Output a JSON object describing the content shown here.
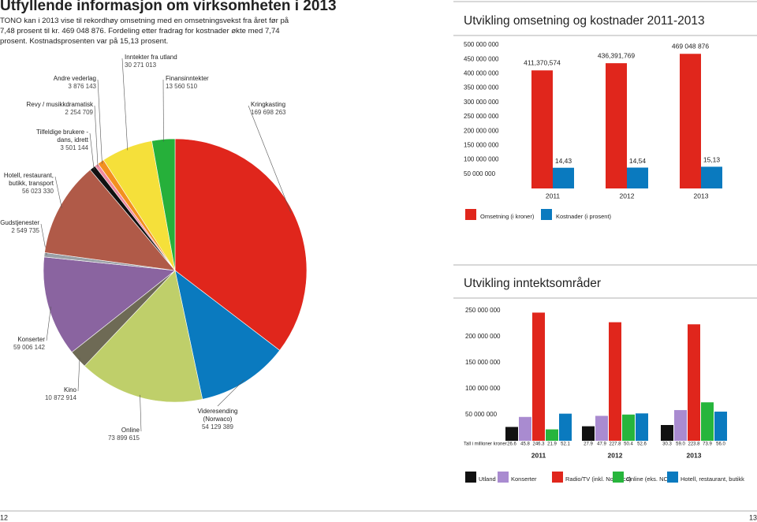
{
  "header": {
    "title": "Utfyllende informasjon om virksomheten i 2013",
    "text": "TONO kan i 2013 vise til rekordhøy omsetning med en omsetningsvekst fra året før på 7,48 prosent til kr. 469 048 876. Fordeling etter fradrag for kostnader økte med 7,74 prosent. Kostnadsprosenten var på 15,13 prosent."
  },
  "page_numbers": [
    "12",
    "13"
  ],
  "chart_data": [
    {
      "type": "pie",
      "categories": [
        "Kringkasting",
        "Videresending (Norwaco)",
        "Online",
        "Kino",
        "Konserter",
        "Gudstjenester",
        "Hotell, restaurant, butikk, transport",
        "Tilfeldige brukere - dans, idrett",
        "Revy / musikkdramatisk",
        "Andre vederlag",
        "Inntekter fra utland",
        "Finansinntekter"
      ],
      "values": [
        169698263,
        54129389,
        73899615,
        10872914,
        59006142,
        2549735,
        56023330,
        3501144,
        2254709,
        3876143,
        30271013,
        13560510
      ],
      "value_labels": [
        "169 698 263",
        "54 129 389",
        "73 899 615",
        "10 872 914",
        "59 006 142",
        "2 549 735",
        "56 023 330",
        "3 501 144",
        "2 254 709",
        "3 876 143",
        "30 271 013",
        "13 560 510"
      ],
      "colors": [
        "#e0261c",
        "#0a7abf",
        "#bfcf6a",
        "#6e6a55",
        "#8a64a0",
        "#9aa0a6",
        "#b05a48",
        "#111111",
        "#f08aa0",
        "#f39020",
        "#f5e03a",
        "#26b03a"
      ]
    },
    {
      "type": "bar",
      "title": "Utvikling omsetning og kostnader 2011-2013",
      "categories": [
        "2011",
        "2012",
        "2013"
      ],
      "series": [
        {
          "name": "Omsetning (i kroner)",
          "color": "#e0261c",
          "values": [
            411370574,
            436391769,
            469048876
          ],
          "value_labels": [
            "411,370,574",
            "436,391,769",
            "469 048 876"
          ]
        },
        {
          "name": "Kostnader (i prosent)",
          "color": "#0a7abf",
          "axis": "y2",
          "values": [
            14.43,
            14.54,
            15.13
          ],
          "value_labels": [
            "14,43",
            "14,54",
            "15,13"
          ]
        }
      ],
      "ylim": [
        0,
        500000000
      ],
      "yticks": [
        {
          "value": 50000000,
          "label": "50 000 000"
        },
        {
          "value": 100000000,
          "label": "100 000 000"
        },
        {
          "value": 150000000,
          "label": "150 000 000"
        },
        {
          "value": 200000000,
          "label": "200 000 000"
        },
        {
          "value": 250000000,
          "label": "250 000 000"
        },
        {
          "value": 300000000,
          "label": "300 000 000"
        },
        {
          "value": 350000000,
          "label": "350 000 000"
        },
        {
          "value": 400000000,
          "label": "400 000 000"
        },
        {
          "value": 450000000,
          "label": "450 000 000"
        },
        {
          "value": 500000000,
          "label": "500 000 000"
        }
      ],
      "y2lim": [
        0,
        100
      ]
    },
    {
      "type": "bar",
      "title": "Utvikling inntektsområder",
      "table_label": "Tall i millioner kroner",
      "categories": [
        "2011",
        "2012",
        "2013"
      ],
      "series": [
        {
          "name": "Utland",
          "color": "#111111",
          "values": [
            26600000,
            27900000,
            30300000
          ],
          "value_labels": [
            "26.6",
            "27.9",
            "30.3"
          ]
        },
        {
          "name": "Konserter",
          "color": "#a98bd0",
          "values": [
            45800000,
            47900000,
            59000000
          ],
          "value_labels": [
            "45.8",
            "47.9",
            "59.0"
          ]
        },
        {
          "name": "Radio/TV (inkl. Norwaco)",
          "color": "#e0261c",
          "values": [
            246300000,
            227800000,
            223800000
          ],
          "value_labels": [
            "246.3",
            "227.8",
            "223.8"
          ]
        },
        {
          "name": "Online (eks. NCB)",
          "color": "#27b53c",
          "values": [
            21900000,
            50400000,
            73900000
          ],
          "value_labels": [
            "21.9",
            "50.4",
            "73.9"
          ]
        },
        {
          "name": "Hotell, restaurant, butikk",
          "color": "#0a7abf",
          "values": [
            52100000,
            52600000,
            56000000
          ],
          "value_labels": [
            "52.1",
            "52.6",
            "56.0"
          ]
        }
      ],
      "ylim": [
        0,
        250000000
      ],
      "yticks": [
        {
          "value": 50000000,
          "label": "50 000 000"
        },
        {
          "value": 100000000,
          "label": "100 000 000"
        },
        {
          "value": 150000000,
          "label": "150 000 000"
        },
        {
          "value": 200000000,
          "label": "200 000 000"
        },
        {
          "value": 250000000,
          "label": "250 000 000"
        }
      ]
    }
  ]
}
